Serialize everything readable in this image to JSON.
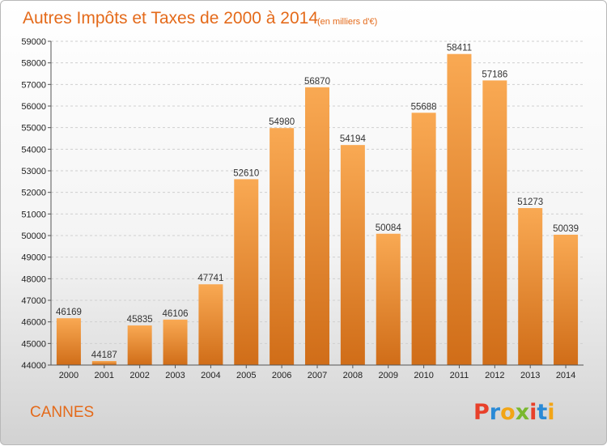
{
  "chart_data": {
    "type": "bar",
    "title": "Autres Impôts et Taxes de 2000 à 2014",
    "subtitle": "(en milliers d'€)",
    "categories": [
      "2000",
      "2001",
      "2002",
      "2003",
      "2004",
      "2005",
      "2006",
      "2007",
      "2008",
      "2009",
      "2010",
      "2011",
      "2012",
      "2013",
      "2014"
    ],
    "values": [
      46169,
      44187,
      45835,
      46106,
      47741,
      52610,
      54980,
      56870,
      54194,
      50084,
      55688,
      58411,
      57186,
      51273,
      50039
    ],
    "ylim": [
      44000,
      59000
    ],
    "yticks": [
      44000,
      45000,
      46000,
      47000,
      48000,
      49000,
      50000,
      51000,
      52000,
      53000,
      54000,
      55000,
      56000,
      57000,
      58000,
      59000
    ],
    "grid": true,
    "bar_color_top": "#f9a953",
    "bar_color_bottom": "#d06d18"
  },
  "footer": {
    "city": "CANNES",
    "logo_letters": [
      "P",
      "r",
      "o",
      "x",
      "i",
      "t",
      "i"
    ],
    "logo_colors": [
      "#e8402a",
      "#2a8ad6",
      "#f2a516",
      "#7ab82e",
      "#e8402a",
      "#2a8ad6",
      "#f2a516"
    ]
  }
}
